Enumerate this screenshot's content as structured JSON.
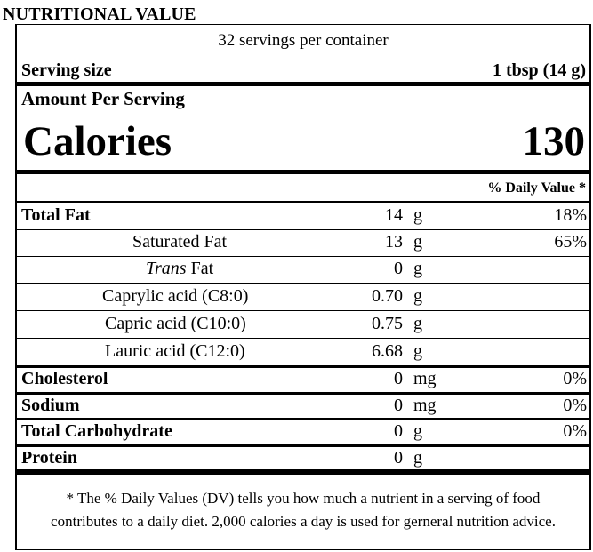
{
  "label": {
    "heading": "NUTRITIONAL VALUE",
    "servings_per_container": "32  servings per container",
    "serving_size_label": "Serving size",
    "serving_size_value": "1 tbsp (14 g)",
    "amount_per_serving": "Amount Per Serving",
    "calories_label": "Calories",
    "calories_value": "130",
    "daily_value_header": "% Daily Value *",
    "nutrients": [
      {
        "name": "Total Fat",
        "amount": "14",
        "unit": "g",
        "dv": "18%"
      },
      {
        "name": "Saturated Fat",
        "amount": "13",
        "unit": "g",
        "dv": "65%"
      },
      {
        "name_italic": "Trans",
        "name_rest": " Fat",
        "amount": "0",
        "unit": "g",
        "dv": ""
      },
      {
        "name": "Caprylic acid (C8:0)",
        "amount": "0.70",
        "unit": "g",
        "dv": ""
      },
      {
        "name": "Capric acid (C10:0)",
        "amount": "0.75",
        "unit": "g",
        "dv": ""
      },
      {
        "name": "Lauric acid (C12:0)",
        "amount": "6.68",
        "unit": "g",
        "dv": ""
      },
      {
        "name": "Cholesterol",
        "amount": "0",
        "unit": "mg",
        "dv": "0%"
      },
      {
        "name": "Sodium",
        "amount": "0",
        "unit": "mg",
        "dv": "0%"
      },
      {
        "name": "Total Carbohydrate",
        "amount": "0",
        "unit": "g",
        "dv": "0%"
      },
      {
        "name": "Protein",
        "amount": "0",
        "unit": "g",
        "dv": ""
      }
    ],
    "footnote_line1": "* The % Daily Values (DV) tells you how much a nutrient in a serving of food",
    "footnote_line2": "contributes to a daily diet. 2,000 calories a day is used for gerneral nutrition advice."
  }
}
